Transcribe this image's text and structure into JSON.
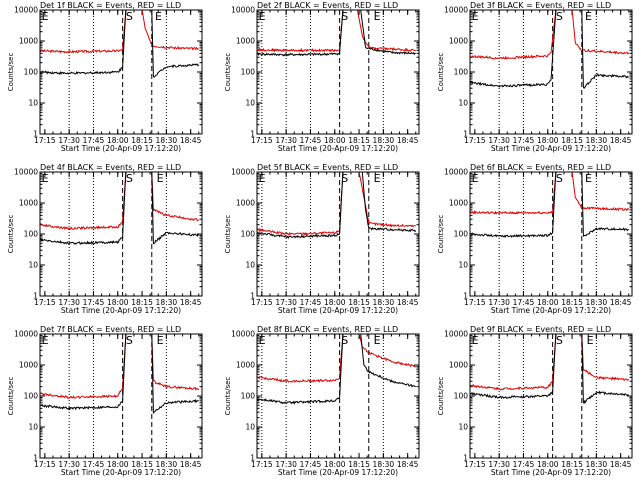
{
  "chart_data": [
    {
      "type": "line",
      "title": "Det 1f BLACK = Events, RED = LLD",
      "xlabel": "Start Time (20-Apr-09 17:12:20)",
      "ylabel": "Counts/sec",
      "yscale": "log",
      "ylim": [
        1,
        10000
      ],
      "xlim": [
        "17:12",
        "18:52"
      ],
      "yticks": [
        "1",
        "10",
        "100",
        "1000",
        "10000"
      ],
      "xticks": [
        "17:15",
        "17:30",
        "17:45",
        "18:00",
        "18:15",
        "18:30",
        "18:45"
      ],
      "dotted_times": [
        "17:30",
        "17:45",
        "18:30"
      ],
      "dashed_times": [
        "18:03",
        "18:21"
      ],
      "markers": [
        {
          "label": "E",
          "time": "17:13"
        },
        {
          "label": "S",
          "time": "18:05"
        },
        {
          "label": "E",
          "time": "18:23"
        }
      ],
      "series": [
        {
          "color": "#e00000",
          "times": [
            "17:12",
            "17:30",
            "18:00",
            "18:03",
            "18:05",
            "18:15",
            "18:17",
            "18:21",
            "18:35",
            "18:50"
          ],
          "values": [
            480,
            450,
            480,
            520,
            10000,
            10000,
            2500,
            700,
            600,
            560
          ]
        },
        {
          "color": "#000000",
          "times": [
            "17:12",
            "17:30",
            "18:00",
            "18:03",
            "18:05",
            "18:21",
            "18:22",
            "18:30",
            "18:50"
          ],
          "values": [
            100,
            90,
            100,
            140,
            10000,
            10000,
            70,
            150,
            170
          ]
        }
      ]
    },
    {
      "type": "line",
      "title": "Det 2f BLACK = Events, RED = LLD",
      "xlabel": "Start Time (20-Apr-09 17:12:20)",
      "ylabel": "Counts/sec",
      "yscale": "log",
      "ylim": [
        1,
        10000
      ],
      "xlim": [
        "17:12",
        "18:52"
      ],
      "yticks": [
        "1",
        "10",
        "100",
        "1000",
        "10000"
      ],
      "xticks": [
        "17:15",
        "17:30",
        "17:45",
        "18:00",
        "18:15",
        "18:30",
        "18:45"
      ],
      "dotted_times": [
        "17:15",
        "17:30",
        "17:45",
        "18:30"
      ],
      "dashed_times": [
        "18:03",
        "18:21"
      ],
      "markers": [
        {
          "label": "E",
          "time": "17:13"
        },
        {
          "label": "S",
          "time": "18:04"
        },
        {
          "label": "E",
          "time": "18:24"
        }
      ],
      "series": [
        {
          "color": "#e00000",
          "times": [
            "17:12",
            "17:30",
            "18:00",
            "18:03",
            "18:05",
            "18:14",
            "18:17",
            "18:21",
            "18:35",
            "18:50"
          ],
          "values": [
            520,
            500,
            500,
            520,
            10000,
            10000,
            1500,
            600,
            550,
            500
          ]
        },
        {
          "color": "#000000",
          "times": [
            "17:12",
            "17:30",
            "18:00",
            "18:03",
            "18:05",
            "18:16",
            "18:19",
            "18:35",
            "18:50"
          ],
          "values": [
            380,
            360,
            380,
            400,
            10000,
            10000,
            600,
            420,
            400
          ]
        }
      ]
    },
    {
      "type": "line",
      "title": "Det 3f BLACK = Events, RED = LLD",
      "xlabel": "Start Time (20-Apr-09 17:12:20)",
      "ylabel": "Counts/sec",
      "yscale": "log",
      "ylim": [
        1,
        10000
      ],
      "xlim": [
        "17:12",
        "18:52"
      ],
      "yticks": [
        "1",
        "10",
        "100",
        "1000",
        "10000"
      ],
      "xticks": [
        "17:15",
        "17:30",
        "17:45",
        "18:00",
        "18:15",
        "18:30",
        "18:45"
      ],
      "dotted_times": [
        "17:30",
        "17:45",
        "18:30"
      ],
      "dashed_times": [
        "18:03",
        "18:21"
      ],
      "markers": [
        {
          "label": "E",
          "time": "17:13"
        },
        {
          "label": "S",
          "time": "18:05"
        },
        {
          "label": "E",
          "time": "18:23"
        }
      ],
      "series": [
        {
          "color": "#e00000",
          "times": [
            "17:12",
            "17:30",
            "18:00",
            "18:02",
            "18:05",
            "18:15",
            "18:17",
            "18:21",
            "18:35",
            "18:50"
          ],
          "values": [
            320,
            280,
            330,
            420,
            10000,
            10000,
            900,
            500,
            450,
            400
          ]
        },
        {
          "color": "#000000",
          "times": [
            "17:12",
            "17:30",
            "18:00",
            "18:02",
            "18:05",
            "18:21",
            "18:22",
            "18:30",
            "18:50"
          ],
          "values": [
            45,
            35,
            40,
            55,
            10000,
            10000,
            30,
            80,
            70
          ]
        }
      ]
    },
    {
      "type": "line",
      "title": "Det 4f BLACK = Events, RED = LLD",
      "xlabel": "Start Time (20-Apr-09 17:12:20)",
      "ylabel": "Counts/sec",
      "yscale": "log",
      "ylim": [
        1,
        10000
      ],
      "xlim": [
        "17:12",
        "18:52"
      ],
      "yticks": [
        "1",
        "10",
        "100",
        "1000",
        "10000"
      ],
      "xticks": [
        "17:15",
        "17:30",
        "17:45",
        "18:00",
        "18:15",
        "18:30",
        "18:45"
      ],
      "dotted_times": [
        "17:30",
        "17:45",
        "18:30"
      ],
      "dashed_times": [
        "18:03",
        "18:21"
      ],
      "markers": [
        {
          "label": "E",
          "time": "17:13"
        },
        {
          "label": "S",
          "time": "18:05"
        },
        {
          "label": "E",
          "time": "18:24"
        }
      ],
      "series": [
        {
          "color": "#e00000",
          "times": [
            "17:12",
            "17:30",
            "18:00",
            "18:03",
            "18:05",
            "18:21",
            "18:22",
            "18:30",
            "18:50"
          ],
          "values": [
            200,
            150,
            170,
            250,
            10000,
            10000,
            600,
            400,
            280
          ]
        },
        {
          "color": "#000000",
          "times": [
            "17:12",
            "17:30",
            "18:00",
            "18:03",
            "18:05",
            "18:21",
            "18:22",
            "18:30",
            "18:50"
          ],
          "values": [
            65,
            50,
            55,
            80,
            10000,
            10000,
            50,
            110,
            90
          ]
        }
      ]
    },
    {
      "type": "line",
      "title": "Det 5f BLACK = Events, RED = LLD",
      "xlabel": "Start Time (20-Apr-09 17:12:20)",
      "ylabel": "Counts/sec",
      "yscale": "log",
      "ylim": [
        1,
        10000
      ],
      "xlim": [
        "17:12",
        "18:52"
      ],
      "yticks": [
        "1",
        "10",
        "100",
        "1000",
        "10000"
      ],
      "xticks": [
        "17:15",
        "17:30",
        "17:45",
        "18:00",
        "18:15",
        "18:30",
        "18:45"
      ],
      "dotted_times": [
        "17:15",
        "17:30",
        "17:45",
        "18:30"
      ],
      "dashed_times": [
        "18:03",
        "18:21"
      ],
      "markers": [
        {
          "label": "E",
          "time": "17:13"
        },
        {
          "label": "S",
          "time": "18:04"
        },
        {
          "label": "E",
          "time": "18:24"
        }
      ],
      "series": [
        {
          "color": "#e00000",
          "times": [
            "17:12",
            "17:30",
            "18:00",
            "18:03",
            "18:05",
            "18:15",
            "18:17",
            "18:21",
            "18:35",
            "18:50"
          ],
          "values": [
            140,
            100,
            110,
            130,
            10000,
            10000,
            3000,
            220,
            190,
            180
          ]
        },
        {
          "color": "#000000",
          "times": [
            "17:12",
            "17:30",
            "18:00",
            "18:03",
            "18:05",
            "18:17",
            "18:19",
            "18:21",
            "18:35",
            "18:50"
          ],
          "values": [
            110,
            80,
            90,
            100,
            10000,
            10000,
            600,
            150,
            140,
            130
          ]
        }
      ]
    },
    {
      "type": "line",
      "title": "Det 6f BLACK = Events, RED = LLD",
      "xlabel": "Start Time (20-Apr-09 17:12:20)",
      "ylabel": "Counts/sec",
      "yscale": "log",
      "ylim": [
        1,
        10000
      ],
      "xlim": [
        "17:12",
        "18:52"
      ],
      "yticks": [
        "1",
        "10",
        "100",
        "1000",
        "10000"
      ],
      "xticks": [
        "17:15",
        "17:30",
        "17:45",
        "18:00",
        "18:15",
        "18:30",
        "18:45"
      ],
      "dotted_times": [
        "17:30",
        "17:45",
        "18:30"
      ],
      "dashed_times": [
        "18:03",
        "18:21"
      ],
      "markers": [
        {
          "label": "E",
          "time": "17:13"
        },
        {
          "label": "S",
          "time": "18:05"
        },
        {
          "label": "E",
          "time": "18:23"
        }
      ],
      "series": [
        {
          "color": "#e00000",
          "times": [
            "17:12",
            "17:30",
            "18:00",
            "18:03",
            "18:05",
            "18:15",
            "18:17",
            "18:21",
            "18:35",
            "18:50"
          ],
          "values": [
            500,
            480,
            490,
            500,
            10000,
            10000,
            1500,
            700,
            650,
            620
          ]
        },
        {
          "color": "#000000",
          "times": [
            "17:12",
            "17:30",
            "18:00",
            "18:03",
            "18:05",
            "18:21",
            "18:22",
            "18:30",
            "18:50"
          ],
          "values": [
            100,
            85,
            90,
            110,
            10000,
            10000,
            80,
            150,
            140
          ]
        }
      ]
    },
    {
      "type": "line",
      "title": "Det 7f BLACK = Events, RED = LLD",
      "xlabel": "Start Time (20-Apr-09 17:12:20)",
      "ylabel": "Counts/sec",
      "yscale": "log",
      "ylim": [
        1,
        10000
      ],
      "xlim": [
        "17:12",
        "18:52"
      ],
      "yticks": [
        "1",
        "10",
        "100",
        "1000",
        "10000"
      ],
      "xticks": [
        "17:15",
        "17:30",
        "17:45",
        "18:00",
        "18:15",
        "18:30",
        "18:45"
      ],
      "dotted_times": [
        "17:30",
        "17:45",
        "18:30"
      ],
      "dashed_times": [
        "18:03",
        "18:21"
      ],
      "markers": [
        {
          "label": "E",
          "time": "17:13"
        },
        {
          "label": "S",
          "time": "18:05"
        },
        {
          "label": "E",
          "time": "18:24"
        }
      ],
      "series": [
        {
          "color": "#e00000",
          "times": [
            "17:12",
            "17:30",
            "18:00",
            "18:03",
            "18:05",
            "18:21",
            "18:22",
            "18:30",
            "18:50"
          ],
          "values": [
            120,
            90,
            100,
            180,
            10000,
            10000,
            300,
            200,
            170
          ]
        },
        {
          "color": "#000000",
          "times": [
            "17:12",
            "17:30",
            "18:00",
            "18:03",
            "18:05",
            "18:21",
            "18:22",
            "18:30",
            "18:50"
          ],
          "values": [
            50,
            40,
            45,
            70,
            10000,
            10000,
            30,
            60,
            70
          ]
        }
      ]
    },
    {
      "type": "line",
      "title": "Det 8f BLACK = Events, RED = LLD",
      "xlabel": "Start Time (20-Apr-09 17:12:20)",
      "ylabel": "Counts/sec",
      "yscale": "log",
      "ylim": [
        1,
        10000
      ],
      "xlim": [
        "17:12",
        "18:52"
      ],
      "yticks": [
        "1",
        "10",
        "100",
        "1000",
        "10000"
      ],
      "xticks": [
        "17:15",
        "17:30",
        "17:45",
        "18:00",
        "18:15",
        "18:30",
        "18:45"
      ],
      "dotted_times": [
        "17:15",
        "17:30",
        "17:45",
        "18:30"
      ],
      "dashed_times": [
        "18:03",
        "18:21"
      ],
      "markers": [
        {
          "label": "E",
          "time": "17:13"
        },
        {
          "label": "S",
          "time": "18:04"
        },
        {
          "label": "E",
          "time": "18:24"
        }
      ],
      "series": [
        {
          "color": "#e00000",
          "times": [
            "17:12",
            "17:30",
            "18:00",
            "18:03",
            "18:05",
            "18:15",
            "18:17",
            "18:21",
            "18:35",
            "18:50"
          ],
          "values": [
            400,
            300,
            320,
            380,
            10000,
            10000,
            4000,
            2500,
            1300,
            900
          ]
        },
        {
          "color": "#000000",
          "times": [
            "17:12",
            "17:30",
            "18:00",
            "18:03",
            "18:05",
            "18:16",
            "18:18",
            "18:21",
            "18:35",
            "18:50"
          ],
          "values": [
            80,
            60,
            70,
            90,
            10000,
            10000,
            1000,
            600,
            300,
            200
          ]
        }
      ]
    },
    {
      "type": "line",
      "title": "Det 9f BLACK = Events, RED = LLD",
      "xlabel": "Start Time (20-Apr-09 17:12:20)",
      "ylabel": "Counts/sec",
      "yscale": "log",
      "ylim": [
        1,
        10000
      ],
      "xlim": [
        "17:12",
        "18:52"
      ],
      "yticks": [
        "1",
        "10",
        "100",
        "1000",
        "10000"
      ],
      "xticks": [
        "17:15",
        "17:30",
        "17:45",
        "18:00",
        "18:15",
        "18:30",
        "18:45"
      ],
      "dotted_times": [
        "17:30",
        "17:45",
        "18:30"
      ],
      "dashed_times": [
        "18:03",
        "18:21"
      ],
      "markers": [
        {
          "label": "E",
          "time": "17:13"
        },
        {
          "label": "S",
          "time": "18:05"
        },
        {
          "label": "E",
          "time": "18:24"
        }
      ],
      "series": [
        {
          "color": "#e00000",
          "times": [
            "17:12",
            "17:30",
            "18:00",
            "18:03",
            "18:05",
            "18:21",
            "18:22",
            "18:30",
            "18:50"
          ],
          "values": [
            220,
            170,
            190,
            300,
            10000,
            10000,
            700,
            400,
            330
          ]
        },
        {
          "color": "#000000",
          "times": [
            "17:12",
            "17:30",
            "18:00",
            "18:03",
            "18:05",
            "18:21",
            "18:22",
            "18:30",
            "18:50"
          ],
          "values": [
            120,
            90,
            100,
            130,
            10000,
            10000,
            60,
            130,
            110
          ]
        }
      ]
    }
  ]
}
